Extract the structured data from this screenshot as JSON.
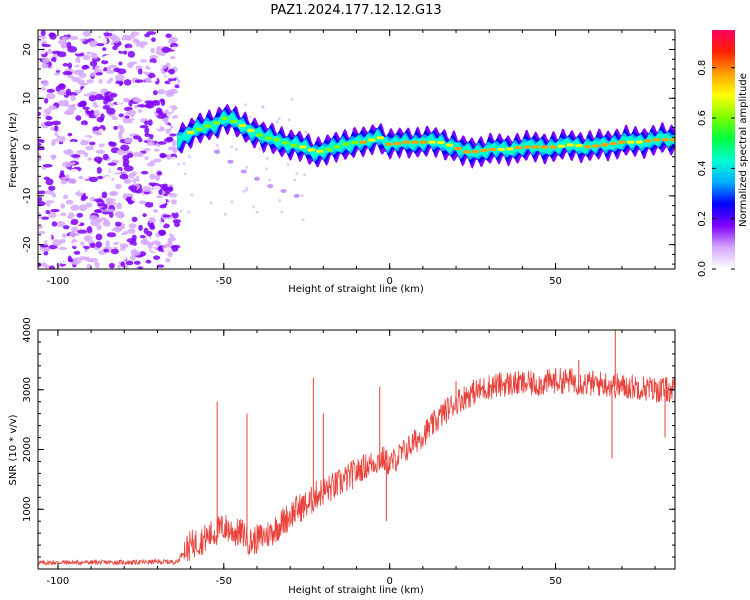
{
  "title": "PAZ1.2024.177.12.12.G13",
  "chart_data": [
    {
      "type": "heatmap",
      "xlabel": "Height of straight line (km)",
      "ylabel": "Frequency (Hz)",
      "xlim": [
        -106,
        86
      ],
      "ylim": [
        -25,
        24
      ],
      "xticks": [
        -100,
        -50,
        0,
        50
      ],
      "yticks": [
        -20,
        -10,
        0,
        10,
        20
      ],
      "grid": false,
      "noise_region_x": [
        -106,
        -64
      ],
      "ridge": {
        "x": [
          -64,
          -60,
          -56,
          -52,
          -50,
          -46,
          -42,
          -38,
          -34,
          -30,
          -26,
          -22,
          -18,
          -14,
          -10,
          -6,
          -4,
          -2,
          0,
          5,
          10,
          15,
          20,
          22,
          25,
          30,
          35,
          40,
          45,
          50,
          55,
          60,
          65,
          70,
          75,
          80,
          86
        ],
        "freq": [
          1.5,
          3,
          4,
          5,
          6,
          5,
          3.5,
          2,
          1.5,
          0.5,
          0,
          -1,
          -0.5,
          0.5,
          1,
          1,
          2.5,
          1.5,
          0.5,
          1,
          1,
          1,
          0,
          -1,
          -1,
          -0.5,
          -0.5,
          0,
          0,
          0,
          0.5,
          0,
          0.5,
          1,
          1,
          1.5,
          1.5
        ]
      },
      "secondary_track": {
        "x": [
          -52,
          -48,
          -44,
          -40,
          -36,
          -32,
          -28
        ],
        "freq": [
          -1,
          -3,
          -5,
          -6.5,
          -8,
          -9,
          -10
        ]
      }
    },
    {
      "type": "line",
      "xlabel": "Height of straight line (km)",
      "ylabel": "SNR (10 * v/v)",
      "xlim": [
        -106,
        86
      ],
      "ylim": [
        0,
        4000
      ],
      "xticks": [
        -100,
        -50,
        0,
        50
      ],
      "yticks": [
        1000,
        2000,
        3000,
        4000
      ],
      "color": "#e8423b",
      "grid": false,
      "series": [
        {
          "x": [
            -106,
            -100,
            -90,
            -80,
            -70,
            -64,
            -62,
            -60,
            -56,
            -53,
            -50,
            -46,
            -44,
            -42,
            -40,
            -36,
            -32,
            -30,
            -28,
            -26,
            -24,
            -22,
            -20,
            -16,
            -12,
            -8,
            -4,
            -2,
            0,
            4,
            8,
            12,
            16,
            20,
            25,
            30,
            35,
            40,
            45,
            50,
            55,
            60,
            65,
            70,
            75,
            80,
            86
          ],
          "y": [
            100,
            110,
            110,
            110,
            120,
            120,
            300,
            400,
            500,
            600,
            700,
            600,
            600,
            450,
            500,
            600,
            800,
            900,
            1000,
            1050,
            1100,
            1250,
            1300,
            1400,
            1550,
            1700,
            1800,
            1850,
            1750,
            1950,
            2150,
            2350,
            2600,
            2800,
            2950,
            3050,
            3100,
            3100,
            3100,
            3150,
            3150,
            3100,
            3100,
            3050,
            3050,
            3000,
            3000
          ]
        }
      ],
      "spikes": [
        {
          "x": -52,
          "y": 2800
        },
        {
          "x": -43,
          "y": 2600
        },
        {
          "x": -23,
          "y": 3200
        },
        {
          "x": -20,
          "y": 2600
        },
        {
          "x": -3,
          "y": 3050
        },
        {
          "x": -1,
          "y": 800
        },
        {
          "x": 20,
          "y": 3150
        },
        {
          "x": 57,
          "y": 3500
        },
        {
          "x": 68,
          "y": 4000
        },
        {
          "x": 67,
          "y": 1850
        },
        {
          "x": 83,
          "y": 2200
        }
      ]
    }
  ],
  "colorbar": {
    "label": "Normalized spectral amplitude",
    "range": [
      0,
      0.95
    ],
    "ticks": [
      "0.0",
      "0.2",
      "0.4",
      "0.6",
      "0.8"
    ],
    "tick_values": [
      0,
      0.2,
      0.4,
      0.6,
      0.8
    ],
    "colors": [
      "#ffffff",
      "#d6a8ff",
      "#7f00ff",
      "#0000ff",
      "#00b0ff",
      "#00ffd0",
      "#00ff40",
      "#80ff00",
      "#ffff00",
      "#ffa000",
      "#ff2000",
      "#ff0060"
    ]
  }
}
